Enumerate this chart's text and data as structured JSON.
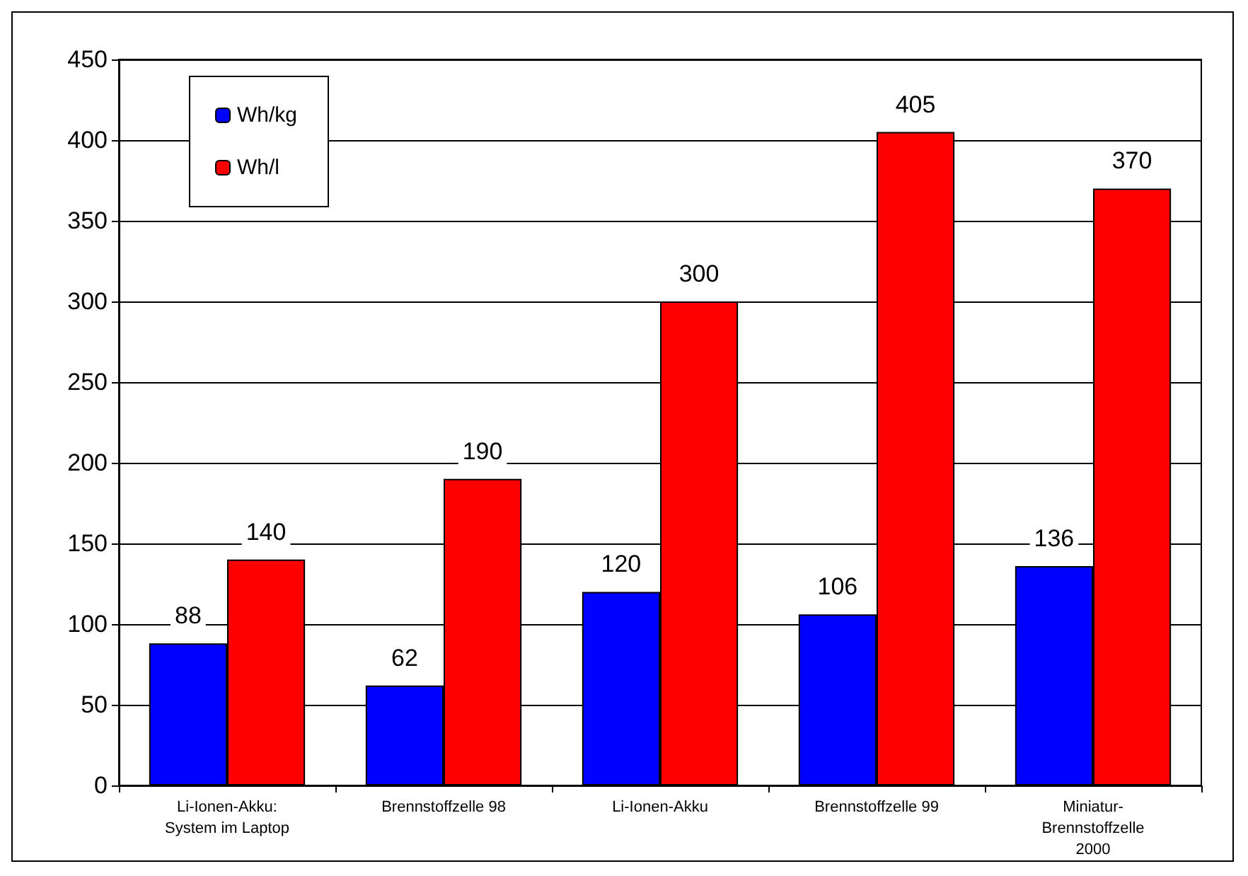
{
  "chart_data": {
    "type": "bar",
    "categories": [
      "Li-Ionen-Akku:\nSystem im Laptop",
      "Brennstoffzelle 98",
      "Li-Ionen-Akku",
      "Brennstoffzelle 99",
      "Miniatur-\nBrennstoffzelle\n2000"
    ],
    "series": [
      {
        "name": "Wh/kg",
        "color": "#0000ff",
        "values": [
          88,
          62,
          120,
          106,
          136
        ]
      },
      {
        "name": "Wh/l",
        "color": "#ff0000",
        "values": [
          140,
          190,
          300,
          405,
          370
        ]
      }
    ],
    "ylim": [
      0,
      450
    ],
    "yticks": [
      0,
      50,
      100,
      150,
      200,
      250,
      300,
      350,
      400,
      450
    ],
    "grid": "y",
    "legend": "top left",
    "data_labels": true
  }
}
